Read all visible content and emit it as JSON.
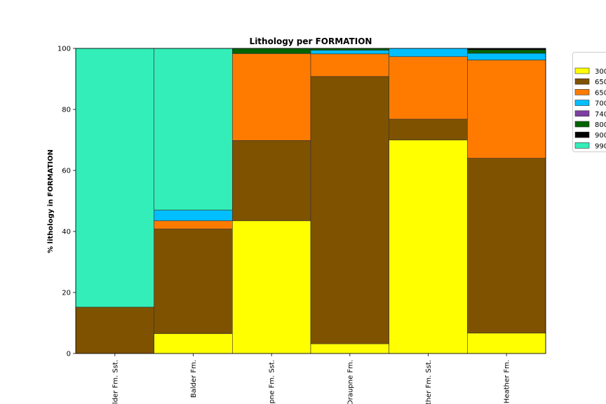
{
  "chart_data": {
    "type": "bar",
    "stacked": true,
    "title": "Lithology per FORMATION",
    "xlabel": "",
    "ylabel": "% lithology in FORMATION",
    "ylim": [
      0,
      100
    ],
    "yticks": [
      "0",
      "20",
      "40",
      "60",
      "80",
      "100"
    ],
    "categories": [
      "Balder Fm. Sst.",
      "Balder Fm.",
      "Draupne Fm. Sst.",
      "Draupne Fm.",
      "Heather Fm. Sst.",
      "Heather Fm."
    ],
    "category_labels": [
      "lder Fm. Sst.",
      "Balder Fm.",
      "upne Fm. Sst.",
      "Draupne Fm.",
      "ther Fm. Sst.",
      "Heather Fm."
    ],
    "series": [
      {
        "name": "300",
        "color": "#ffff00",
        "values": [
          0,
          6.5,
          43.5,
          3.2,
          70.0,
          6.7
        ]
      },
      {
        "name": "650",
        "color": "#7f5200",
        "values": [
          15.2,
          34.3,
          26.3,
          87.6,
          6.8,
          57.3
        ]
      },
      {
        "name": "650",
        "color": "#ff7b00",
        "values": [
          0,
          2.7,
          28.5,
          7.4,
          20.5,
          32.2
        ]
      },
      {
        "name": "700",
        "color": "#00beff",
        "values": [
          0,
          3.5,
          0,
          1.2,
          2.7,
          2.2
        ]
      },
      {
        "name": "740",
        "color": "#7c3fa0",
        "values": [
          0,
          0,
          0,
          0,
          0,
          0
        ]
      },
      {
        "name": "800",
        "color": "#006400",
        "values": [
          0,
          0,
          1.7,
          0.6,
          0,
          1.1
        ]
      },
      {
        "name": "900",
        "color": "#000000",
        "values": [
          0,
          0,
          0,
          0,
          0,
          0.5
        ]
      },
      {
        "name": "990",
        "color": "#33eeb9",
        "values": [
          84.8,
          53.0,
          0,
          0,
          0,
          0
        ]
      }
    ],
    "legend_position": "right",
    "grid": false
  }
}
